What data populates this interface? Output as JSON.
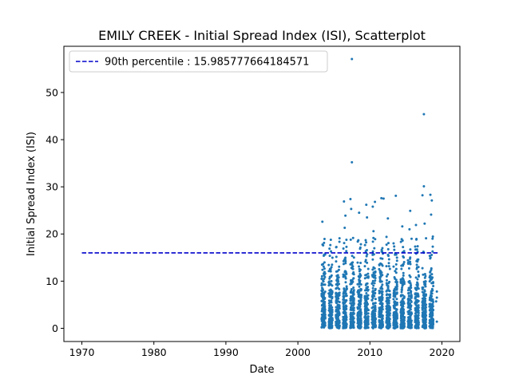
{
  "chart_data": {
    "type": "scatter",
    "title": "EMILY CREEK - Initial Spread Index (ISI), Scatterplot",
    "xlabel": "Date",
    "ylabel": "Initial Spread Index (ISI)",
    "xlim": [
      1967.5,
      2022.5
    ],
    "ylim": [
      -2.8,
      59.8
    ],
    "x_ticks": [
      1970,
      1980,
      1990,
      2000,
      2010,
      2020
    ],
    "y_ticks": [
      0,
      10,
      20,
      30,
      40,
      50
    ],
    "grid": false,
    "legend_position": "top-left",
    "point_color": "#1f77b4",
    "line_color": "#0000cc",
    "percentile": {
      "label": "90th percentile : 15.985777664184571",
      "value": 15.985777664184571,
      "x_range": [
        1970,
        2019.5
      ]
    },
    "season_years": [
      2003,
      2004,
      2005,
      2006,
      2007,
      2008,
      2009,
      2010,
      2011,
      2012,
      2013,
      2014,
      2015,
      2016,
      2017,
      2018
    ],
    "notable_points": [
      {
        "x": 2007.5,
        "y": 57.1
      },
      {
        "x": 2017.5,
        "y": 45.4
      },
      {
        "x": 2007.5,
        "y": 35.2
      },
      {
        "x": 2017.5,
        "y": 30.1
      },
      {
        "x": 2017.3,
        "y": 28.2
      },
      {
        "x": 2013.6,
        "y": 28.1
      },
      {
        "x": 2018.4,
        "y": 28.3
      },
      {
        "x": 2011.6,
        "y": 27.6
      },
      {
        "x": 2011.9,
        "y": 27.5
      },
      {
        "x": 2007.3,
        "y": 27.4
      },
      {
        "x": 2018.6,
        "y": 27.1
      },
      {
        "x": 2006.4,
        "y": 26.9
      },
      {
        "x": 2010.7,
        "y": 26.8
      },
      {
        "x": 2009.5,
        "y": 26.2
      },
      {
        "x": 2010.4,
        "y": 25.8
      },
      {
        "x": 2007.4,
        "y": 25.3
      },
      {
        "x": 2015.6,
        "y": 24.9
      },
      {
        "x": 2008.5,
        "y": 24.5
      },
      {
        "x": 2018.5,
        "y": 24.1
      },
      {
        "x": 2006.6,
        "y": 23.9
      },
      {
        "x": 2009.6,
        "y": 23.5
      },
      {
        "x": 2012.5,
        "y": 23.3
      },
      {
        "x": 2003.4,
        "y": 22.6
      },
      {
        "x": 2017.6,
        "y": 22.2
      },
      {
        "x": 2016.4,
        "y": 21.9
      },
      {
        "x": 2014.5,
        "y": 21.6
      },
      {
        "x": 2006.5,
        "y": 21.3
      },
      {
        "x": 2015.5,
        "y": 21.0
      },
      {
        "x": 2010.5,
        "y": 20.6
      },
      {
        "x": 2019.3,
        "y": 7.8
      },
      {
        "x": 2019.3,
        "y": 6.5
      },
      {
        "x": 2019.2,
        "y": 5.7
      },
      {
        "x": 2019.3,
        "y": 1.4
      }
    ]
  }
}
